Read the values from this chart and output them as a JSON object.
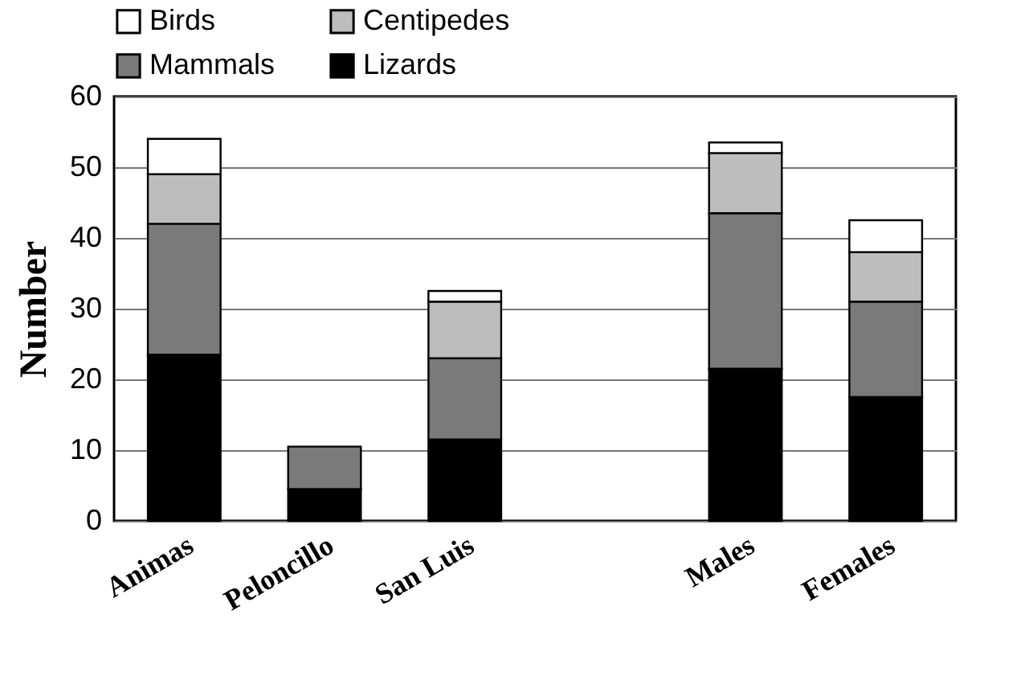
{
  "chart_data": {
    "type": "bar",
    "stacked": true,
    "ylabel": "Number",
    "categories": [
      "Animas",
      "Peloncillo",
      "San Luis",
      null,
      "Males",
      "Females"
    ],
    "series": [
      {
        "name": "Lizards",
        "color": "#000000",
        "values": [
          23.5,
          4.5,
          11.5,
          null,
          21.5,
          17.5
        ]
      },
      {
        "name": "Mammals",
        "color": "#7a7a7a",
        "values": [
          18.5,
          6,
          11.5,
          null,
          22,
          13.5
        ]
      },
      {
        "name": "Centipedes",
        "color": "#bdbdbd",
        "values": [
          7,
          null,
          8,
          null,
          8.5,
          7
        ]
      },
      {
        "name": "Birds",
        "color": "#ffffff",
        "values": [
          5,
          null,
          1.5,
          null,
          1.5,
          4.5
        ]
      }
    ],
    "ylim": [
      0,
      60
    ],
    "yticks": [
      0,
      10,
      20,
      30,
      40,
      50,
      60
    ],
    "grid": "y",
    "legend": "top left"
  }
}
